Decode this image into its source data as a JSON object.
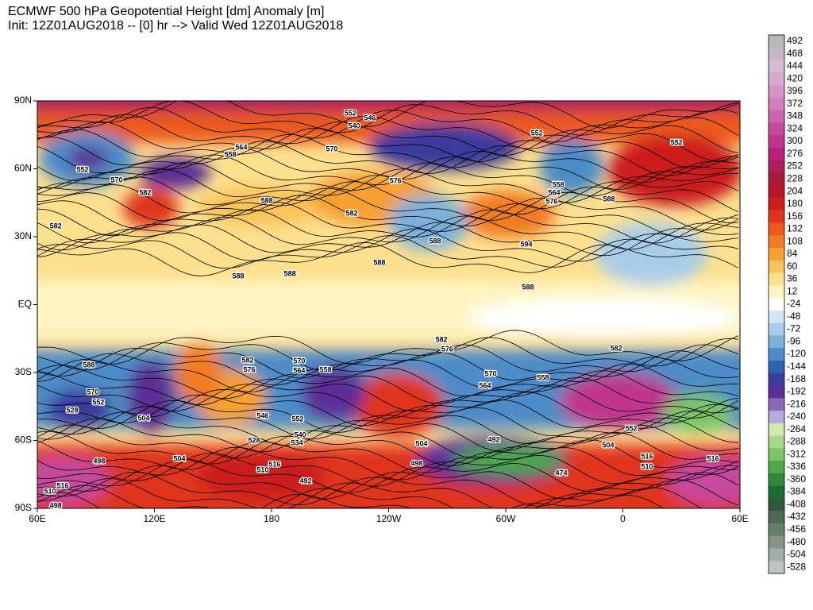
{
  "header": {
    "title_line1": "ECMWF 500 hPa Geopotential Height [dm] Anomaly [m]",
    "title_line2": "Init: 12Z01AUG2018 -- [0] hr --> Valid Wed 12Z01AUG2018"
  },
  "map": {
    "xlim": [
      60,
      420
    ],
    "ylim": [
      -90,
      90
    ],
    "xticks": [
      {
        "value": 60,
        "label": "60E"
      },
      {
        "value": 120,
        "label": "120E"
      },
      {
        "value": 180,
        "label": "180"
      },
      {
        "value": 240,
        "label": "120W"
      },
      {
        "value": 300,
        "label": "60W"
      },
      {
        "value": 360,
        "label": "0"
      },
      {
        "value": 420,
        "label": "60E"
      }
    ],
    "yticks": [
      {
        "value": 90,
        "label": "90N"
      },
      {
        "value": 60,
        "label": "60N"
      },
      {
        "value": 30,
        "label": "30N"
      },
      {
        "value": 0,
        "label": "EQ"
      },
      {
        "value": -30,
        "label": "30S"
      },
      {
        "value": -60,
        "label": "60S"
      },
      {
        "value": -90,
        "label": "90S"
      }
    ],
    "contour_labels": [
      {
        "value": 552,
        "lon": 220.4,
        "lat": 84.4
      },
      {
        "value": 546,
        "lon": 230.4,
        "lat": 82.3
      },
      {
        "value": 540,
        "lon": 222.3,
        "lat": 78.8
      },
      {
        "value": 552,
        "lon": 83.2,
        "lat": 59.5
      },
      {
        "value": 564,
        "lon": 164.5,
        "lat": 69.3
      },
      {
        "value": 558,
        "lon": 158.9,
        "lat": 66.1
      },
      {
        "value": 570,
        "lon": 210.9,
        "lat": 68.6
      },
      {
        "value": 552,
        "lon": 315.9,
        "lat": 75.6
      },
      {
        "value": 552,
        "lon": 387.5,
        "lat": 71.4
      },
      {
        "value": 570,
        "lon": 100.7,
        "lat": 54.9
      },
      {
        "value": 582,
        "lon": 115.3,
        "lat": 49.3
      },
      {
        "value": 588,
        "lon": 177.6,
        "lat": 45.8
      },
      {
        "value": 582,
        "lon": 221.1,
        "lat": 40.2
      },
      {
        "value": 576,
        "lon": 243.5,
        "lat": 54.6
      },
      {
        "value": 558,
        "lon": 326.9,
        "lat": 52.8
      },
      {
        "value": 564,
        "lon": 324.8,
        "lat": 49.3
      },
      {
        "value": 576,
        "lon": 323.6,
        "lat": 45.4
      },
      {
        "value": 588,
        "lon": 352.9,
        "lat": 46.5
      },
      {
        "value": 582,
        "lon": 69.4,
        "lat": 34.6
      },
      {
        "value": 588,
        "lon": 263.8,
        "lat": 27.9
      },
      {
        "value": 594,
        "lon": 310.6,
        "lat": 26.5
      },
      {
        "value": 588,
        "lon": 235.3,
        "lat": 18.4
      },
      {
        "value": 588,
        "lon": 162.9,
        "lat": 12.5
      },
      {
        "value": 588,
        "lon": 189.4,
        "lat": 13.5
      },
      {
        "value": 588,
        "lon": 311.4,
        "lat": 7.5
      },
      {
        "value": 582,
        "lon": 267.1,
        "lat": -15.6
      },
      {
        "value": 576,
        "lon": 270.0,
        "lat": -19.8
      },
      {
        "value": 588,
        "lon": 86.4,
        "lat": -26.9
      },
      {
        "value": 582,
        "lon": 167.8,
        "lat": -24.7
      },
      {
        "value": 576,
        "lon": 168.6,
        "lat": -29.0
      },
      {
        "value": 570,
        "lon": 194.2,
        "lat": -25.1
      },
      {
        "value": 564,
        "lon": 194.2,
        "lat": -29.3
      },
      {
        "value": 558,
        "lon": 207.7,
        "lat": -29.0
      },
      {
        "value": 570,
        "lon": 292.3,
        "lat": -30.7
      },
      {
        "value": 558,
        "lon": 319.1,
        "lat": -32.5
      },
      {
        "value": 564,
        "lon": 289.4,
        "lat": -36.0
      },
      {
        "value": 582,
        "lon": 356.6,
        "lat": -19.5
      },
      {
        "value": 570,
        "lon": 88.5,
        "lat": -38.8
      },
      {
        "value": 552,
        "lon": 91.3,
        "lat": -43.3
      },
      {
        "value": 504,
        "lon": 114.5,
        "lat": -50.4
      },
      {
        "value": 546,
        "lon": 175.5,
        "lat": -49.3
      },
      {
        "value": 552,
        "lon": 193.4,
        "lat": -50.7
      },
      {
        "value": 528,
        "lon": 171.1,
        "lat": -60.2
      },
      {
        "value": 540,
        "lon": 194.7,
        "lat": -57.7
      },
      {
        "value": 534,
        "lon": 193.0,
        "lat": -61.2
      },
      {
        "value": 504,
        "lon": 256.9,
        "lat": -61.6
      },
      {
        "value": 498,
        "lon": 254.4,
        "lat": -70.4
      },
      {
        "value": 492,
        "lon": 293.9,
        "lat": -59.8
      },
      {
        "value": 504,
        "lon": 352.5,
        "lat": -62.3
      },
      {
        "value": 552,
        "lon": 364.3,
        "lat": -54.9
      },
      {
        "value": 474,
        "lon": 328.5,
        "lat": -74.6
      },
      {
        "value": 498,
        "lon": 91.7,
        "lat": -69.3
      },
      {
        "value": 504,
        "lon": 132.8,
        "lat": -68.3
      },
      {
        "value": 510,
        "lon": 175.5,
        "lat": -73.2
      },
      {
        "value": 516,
        "lon": 181.6,
        "lat": -70.7
      },
      {
        "value": 492,
        "lon": 197.5,
        "lat": -78.1
      },
      {
        "value": 510,
        "lon": 66.5,
        "lat": -82.6
      },
      {
        "value": 516,
        "lon": 73.0,
        "lat": -80.2
      },
      {
        "value": 498,
        "lon": 69.4,
        "lat": -89.0
      },
      {
        "value": 516,
        "lon": 406.2,
        "lat": -68.3
      },
      {
        "value": 510,
        "lon": 372.4,
        "lat": -71.8
      },
      {
        "value": 516,
        "lon": 372.4,
        "lat": -67.2
      },
      {
        "value": 528,
        "lon": 77.9,
        "lat": -46.9
      }
    ]
  },
  "colorbar": {
    "levels": [
      492,
      468,
      444,
      420,
      396,
      372,
      348,
      324,
      300,
      276,
      252,
      228,
      204,
      180,
      156,
      132,
      108,
      84,
      60,
      36,
      12,
      -24,
      -48,
      -72,
      -96,
      -120,
      -144,
      -168,
      -192,
      -216,
      -240,
      -264,
      -288,
      -312,
      -336,
      -360,
      -384,
      -408,
      -432,
      -456,
      -480,
      -504,
      -528
    ],
    "colors": [
      "#b8b8b8",
      "#c9b3c6",
      "#d6bcd3",
      "#d8a9cf",
      "#d693c6",
      "#d17fbd",
      "#cc66b0",
      "#c64a9f",
      "#c0358e",
      "#b82378",
      "#b01c5c",
      "#a81a3c",
      "#b8182a",
      "#cc1f1f",
      "#e0341c",
      "#ec5a1c",
      "#f27c24",
      "#f6a032",
      "#fac35a",
      "#fde08e",
      "#fef5c2",
      "#ffffff",
      "#d3e6f3",
      "#a9cde8",
      "#7ab0da",
      "#4e8cc8",
      "#2f62b0",
      "#3b3a9e",
      "#5b2f96",
      "#8a6ab8",
      "#b9a8dc",
      "#d3e9b4",
      "#a8d98a",
      "#7cc466",
      "#4ea848",
      "#2e8a3a",
      "#1f6b35",
      "#2d5a3c",
      "#4a6a52",
      "#687e6c",
      "#84958a",
      "#a3aea6",
      "#bfc4c0"
    ]
  }
}
